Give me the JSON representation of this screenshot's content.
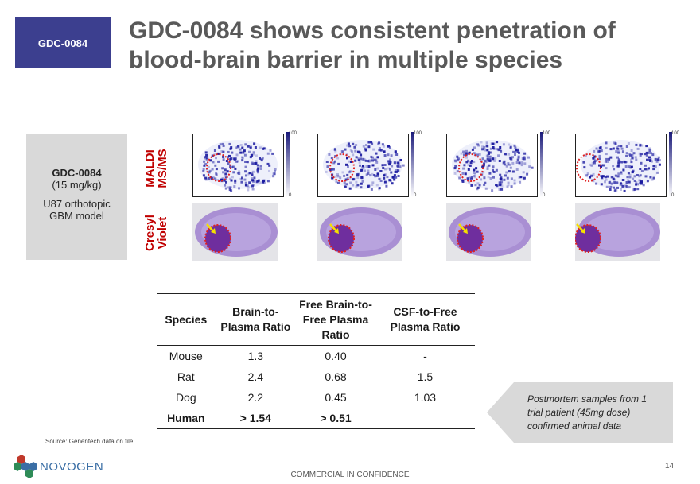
{
  "tag": {
    "label": "GDC-0084"
  },
  "title": "GDC-0084 shows consistent penetration of blood-brain barrier in multiple species",
  "info": {
    "compound": "GDC-0084",
    "dose": "(15 mg/kg)",
    "model_line1": "U87 orthotopic",
    "model_line2": "GBM model"
  },
  "row_labels": {
    "maldi": "MALDI\nMS/MS",
    "nissl": "Cresyl\nViolet"
  },
  "colorbar": {
    "max": "100",
    "min": "0"
  },
  "table": {
    "headers": [
      "Species",
      "Brain-to-Plasma Ratio",
      "Free Brain-to-Free Plasma Ratio",
      "CSF-to-Free Plasma Ratio"
    ],
    "rows": [
      [
        "Mouse",
        "1.3",
        "0.40",
        "-"
      ],
      [
        "Rat",
        "2.4",
        "0.68",
        "1.5"
      ],
      [
        "Dog",
        "2.2",
        "0.45",
        "1.03"
      ],
      [
        "Human",
        "> 1.54",
        "> 0.51",
        ""
      ]
    ]
  },
  "callout": "Postmortem samples from 1 trial patient (45mg dose) confirmed animal data",
  "source": "Source: Genentech data on file",
  "logo": {
    "text": "NOVOGEN"
  },
  "footer": "COMMERCIAL IN CONFIDENCE",
  "page_number": "14",
  "colors": {
    "tag_bg": "#3c3f8f",
    "accent_red": "#c00000",
    "title_gray": "#595959",
    "box_gray": "#d9d9d9"
  }
}
